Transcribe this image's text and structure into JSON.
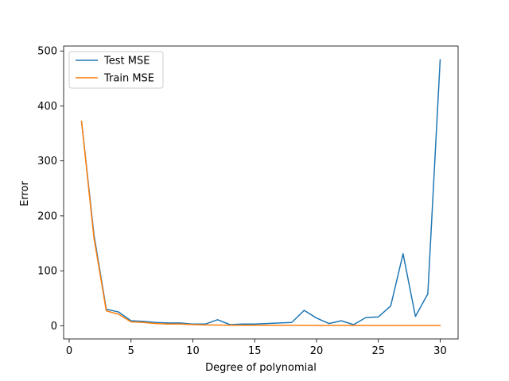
{
  "chart_data": {
    "type": "line",
    "title": "",
    "xlabel": "Degree of polynomial",
    "ylabel": "Error",
    "xlim": [
      -0.45,
      31.45
    ],
    "ylim": [
      -24.0,
      509.0
    ],
    "xticks": [
      0,
      5,
      10,
      15,
      20,
      25,
      30
    ],
    "yticks": [
      0,
      100,
      200,
      300,
      400,
      500
    ],
    "grid": false,
    "legend_position": "upper-left",
    "x": [
      1,
      2,
      3,
      4,
      5,
      6,
      7,
      8,
      9,
      10,
      11,
      12,
      13,
      14,
      15,
      16,
      17,
      18,
      19,
      20,
      21,
      22,
      23,
      24,
      25,
      26,
      27,
      28,
      29,
      30
    ],
    "series": [
      {
        "name": "Test MSE",
        "color": "#1f77b4",
        "values": [
          372,
          166,
          30,
          25,
          9,
          8,
          6,
          5,
          5,
          3,
          3,
          11,
          2,
          3,
          3,
          4,
          5,
          6,
          28,
          14,
          4,
          9,
          2,
          15,
          16,
          36,
          131,
          17,
          58,
          484
        ]
      },
      {
        "name": "Train MSE",
        "color": "#ff7f0e",
        "values": [
          372,
          160,
          27,
          21,
          7,
          6,
          4,
          3,
          3,
          2,
          1.5,
          1.2,
          1,
          1,
          1,
          1,
          0.8,
          0.7,
          0.7,
          0.6,
          0.6,
          0.5,
          0.5,
          0.5,
          0.4,
          0.4,
          0.4,
          0.4,
          0.3,
          0.3
        ]
      }
    ]
  }
}
